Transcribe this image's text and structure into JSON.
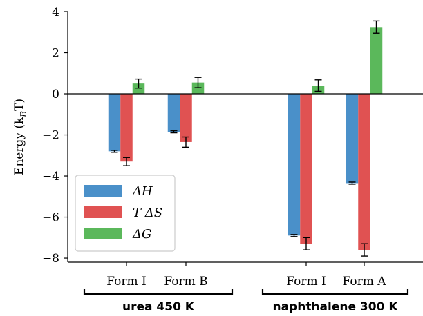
{
  "chart_data": {
    "type": "bar",
    "ylabel": "Energy (k_BT)",
    "ylim": [
      -8.2,
      4.0
    ],
    "yticks": [
      4,
      2,
      0,
      -2,
      -4,
      -6,
      -8
    ],
    "ytick_labels": [
      "4",
      "2",
      "0",
      "−2",
      "−4",
      "−6",
      "−8"
    ],
    "categories": [
      "Form I",
      "Form B",
      "Form I",
      "Form A"
    ],
    "groups": [
      {
        "label": "urea 450 K",
        "categories": [
          "Form I",
          "Form B"
        ]
      },
      {
        "label": "naphthalene 300 K",
        "categories": [
          "Form I",
          "Form A"
        ]
      }
    ],
    "series": [
      {
        "name": "ΔH",
        "color": "#4a90c9",
        "values": [
          -2.8,
          -1.85,
          -6.9,
          -4.35
        ],
        "errors": [
          0.05,
          0.05,
          0.05,
          0.05
        ]
      },
      {
        "name": "T ΔS",
        "color": "#e05252",
        "values": [
          -3.3,
          -2.35,
          -7.3,
          -7.6
        ],
        "errors": [
          0.2,
          0.25,
          0.3,
          0.3
        ]
      },
      {
        "name": "ΔG",
        "color": "#5bb85b",
        "values": [
          0.5,
          0.55,
          0.4,
          3.25
        ],
        "errors": [
          0.22,
          0.25,
          0.28,
          0.3
        ]
      }
    ],
    "legend": {
      "position": "lower-left"
    },
    "grid": false
  }
}
